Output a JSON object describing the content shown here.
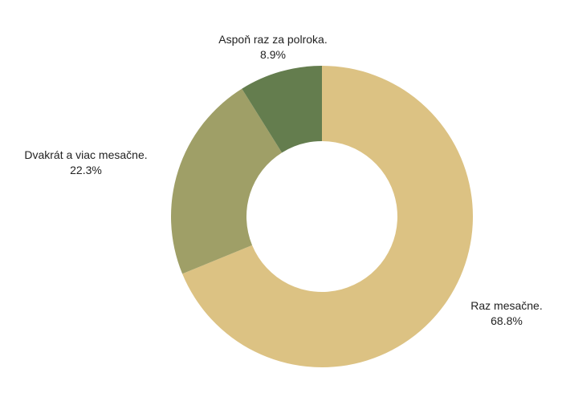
{
  "chart_data": {
    "type": "pie",
    "hole": true,
    "start_angle_deg": 0,
    "direction": "clockwise",
    "slices": [
      {
        "label": "Raz mesačne.",
        "value": 68.8,
        "value_label": "68.8%",
        "color": "#dcc283"
      },
      {
        "label": "Dvakrát a viac mesačne.",
        "value": 22.3,
        "value_label": "22.3%",
        "color": "#9f9f67"
      },
      {
        "label": "Aspoň raz za polroka.",
        "value": 8.9,
        "value_label": "8.9%",
        "color": "#647d4e"
      }
    ]
  }
}
